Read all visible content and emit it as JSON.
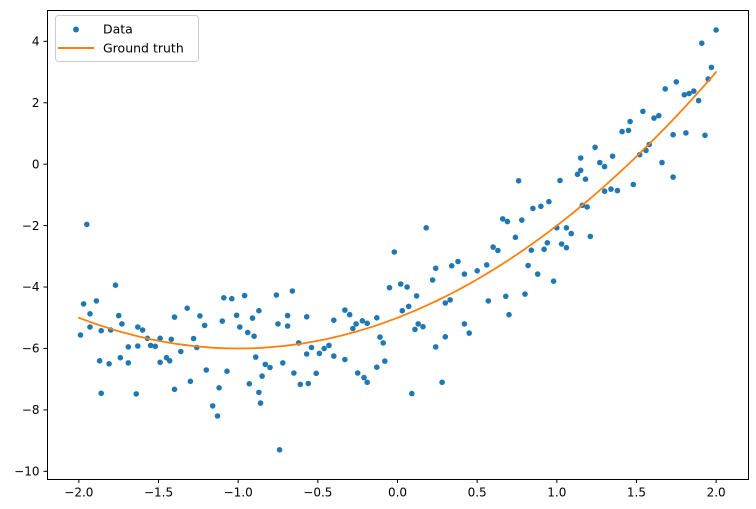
{
  "figure": {
    "background": "#ffffff",
    "legend": {
      "position": "upper left",
      "items": [
        {
          "label": "Data",
          "marker": "dot",
          "color": "#1f77b4"
        },
        {
          "label": "Ground truth",
          "marker": "line",
          "color": "#ff7f0e"
        }
      ]
    }
  },
  "chart_data": {
    "type": "scatter",
    "title": "",
    "xlabel": "",
    "ylabel": "",
    "grid": false,
    "legend_position": "upper left",
    "xlim": [
      -2.2,
      2.2
    ],
    "ylim": [
      -10.25,
      5.02
    ],
    "x_ticks": [
      -2.0,
      -1.5,
      -1.0,
      -0.5,
      0.0,
      0.5,
      1.0,
      1.5,
      2.0
    ],
    "x_tick_labels": [
      "−2.0",
      "−1.5",
      "−1.0",
      "−0.5",
      "0.0",
      "0.5",
      "1.0",
      "1.5",
      "2.0"
    ],
    "y_ticks": [
      4,
      2,
      0,
      -2,
      -4,
      -6,
      -8,
      -10
    ],
    "y_tick_labels": [
      "4",
      "2",
      "0",
      "−2",
      "−4",
      "−6",
      "−8",
      "−10"
    ],
    "series": [
      {
        "name": "Data",
        "type": "scatter",
        "color": "#1f77b4",
        "marker_radius": 2.8,
        "points": [
          [
            -1.99,
            -5.56
          ],
          [
            -1.97,
            -4.55
          ],
          [
            -1.95,
            -1.96
          ],
          [
            -1.93,
            -4.87
          ],
          [
            -1.93,
            -5.3
          ],
          [
            -1.89,
            -4.45
          ],
          [
            -1.87,
            -6.4
          ],
          [
            -1.86,
            -5.42
          ],
          [
            -1.86,
            -7.46
          ],
          [
            -1.81,
            -6.5
          ],
          [
            -1.8,
            -5.4
          ],
          [
            -1.77,
            -3.94
          ],
          [
            -1.75,
            -4.93
          ],
          [
            -1.74,
            -6.3
          ],
          [
            -1.73,
            -5.2
          ],
          [
            -1.69,
            -5.95
          ],
          [
            -1.69,
            -6.47
          ],
          [
            -1.64,
            -7.48
          ],
          [
            -1.63,
            -5.3
          ],
          [
            -1.63,
            -5.92
          ],
          [
            -1.6,
            -5.4
          ],
          [
            -1.57,
            -5.67
          ],
          [
            -1.55,
            -5.9
          ],
          [
            -1.52,
            -5.93
          ],
          [
            -1.49,
            -5.67
          ],
          [
            -1.49,
            -6.45
          ],
          [
            -1.45,
            -6.3
          ],
          [
            -1.43,
            -6.4
          ],
          [
            -1.42,
            -5.7
          ],
          [
            -1.4,
            -4.98
          ],
          [
            -1.4,
            -7.33
          ],
          [
            -1.36,
            -6.1
          ],
          [
            -1.32,
            -4.69
          ],
          [
            -1.3,
            -7.07
          ],
          [
            -1.28,
            -5.68
          ],
          [
            -1.26,
            -5.97
          ],
          [
            -1.24,
            -4.94
          ],
          [
            -1.21,
            -5.25
          ],
          [
            -1.2,
            -6.7
          ],
          [
            -1.16,
            -7.87
          ],
          [
            -1.13,
            -8.2
          ],
          [
            -1.12,
            -7.28
          ],
          [
            -1.1,
            -5.11
          ],
          [
            -1.09,
            -4.35
          ],
          [
            -1.07,
            -6.74
          ],
          [
            -1.04,
            -4.38
          ],
          [
            -1.01,
            -4.92
          ],
          [
            -0.99,
            -5.3
          ],
          [
            -0.96,
            -4.28
          ],
          [
            -0.94,
            -5.48
          ],
          [
            -0.93,
            -7.15
          ],
          [
            -0.91,
            -5.01
          ],
          [
            -0.9,
            -5.6
          ],
          [
            -0.89,
            -6.28
          ],
          [
            -0.87,
            -4.77
          ],
          [
            -0.87,
            -7.43
          ],
          [
            -0.86,
            -7.78
          ],
          [
            -0.85,
            -6.9
          ],
          [
            -0.83,
            -6.52
          ],
          [
            -0.8,
            -6.62
          ],
          [
            -0.76,
            -4.26
          ],
          [
            -0.75,
            -5.2
          ],
          [
            -0.74,
            -9.3
          ],
          [
            -0.72,
            -6.47
          ],
          [
            -0.69,
            -4.93
          ],
          [
            -0.69,
            -5.27
          ],
          [
            -0.66,
            -4.13
          ],
          [
            -0.65,
            -6.8
          ],
          [
            -0.62,
            -5.82
          ],
          [
            -0.61,
            -7.17
          ],
          [
            -0.57,
            -4.97
          ],
          [
            -0.57,
            -6.18
          ],
          [
            -0.56,
            -7.14
          ],
          [
            -0.54,
            -5.97
          ],
          [
            -0.51,
            -6.81
          ],
          [
            -0.49,
            -6.16
          ],
          [
            -0.46,
            -6.0
          ],
          [
            -0.43,
            -5.9
          ],
          [
            -0.4,
            -5.08
          ],
          [
            -0.4,
            -6.25
          ],
          [
            -0.33,
            -4.75
          ],
          [
            -0.33,
            -6.36
          ],
          [
            -0.3,
            -4.9
          ],
          [
            -0.28,
            -5.35
          ],
          [
            -0.26,
            -5.2
          ],
          [
            -0.25,
            -6.8
          ],
          [
            -0.22,
            -5.1
          ],
          [
            -0.21,
            -6.95
          ],
          [
            -0.19,
            -5.18
          ],
          [
            -0.19,
            -7.1
          ],
          [
            -0.13,
            -5.0
          ],
          [
            -0.13,
            -6.61
          ],
          [
            -0.11,
            -5.63
          ],
          [
            -0.09,
            -5.82
          ],
          [
            -0.08,
            -6.41
          ],
          [
            -0.05,
            -4.02
          ],
          [
            -0.02,
            -2.86
          ],
          [
            0.02,
            -3.9
          ],
          [
            0.03,
            -4.77
          ],
          [
            0.06,
            -4.0
          ],
          [
            0.07,
            -4.63
          ],
          [
            0.09,
            -7.47
          ],
          [
            0.11,
            -5.38
          ],
          [
            0.12,
            -4.29
          ],
          [
            0.13,
            -5.2
          ],
          [
            0.16,
            -5.29
          ],
          [
            0.18,
            -2.07
          ],
          [
            0.22,
            -3.77
          ],
          [
            0.24,
            -3.39
          ],
          [
            0.24,
            -5.95
          ],
          [
            0.28,
            -7.1
          ],
          [
            0.3,
            -4.52
          ],
          [
            0.3,
            -5.62
          ],
          [
            0.33,
            -4.42
          ],
          [
            0.34,
            -3.31
          ],
          [
            0.38,
            -3.17
          ],
          [
            0.42,
            -3.58
          ],
          [
            0.42,
            -5.2
          ],
          [
            0.45,
            -5.5
          ],
          [
            0.5,
            -3.47
          ],
          [
            0.56,
            -3.28
          ],
          [
            0.57,
            -4.45
          ],
          [
            0.6,
            -2.7
          ],
          [
            0.63,
            -2.81
          ],
          [
            0.66,
            -1.78
          ],
          [
            0.68,
            -4.3
          ],
          [
            0.69,
            -1.87
          ],
          [
            0.7,
            -4.9
          ],
          [
            0.74,
            -2.38
          ],
          [
            0.76,
            -0.54
          ],
          [
            0.78,
            -1.82
          ],
          [
            0.8,
            -4.23
          ],
          [
            0.82,
            -3.3
          ],
          [
            0.84,
            -2.8
          ],
          [
            0.85,
            -1.44
          ],
          [
            0.88,
            -3.58
          ],
          [
            0.9,
            -1.37
          ],
          [
            0.92,
            -2.77
          ],
          [
            0.94,
            -2.56
          ],
          [
            0.95,
            -1.22
          ],
          [
            0.98,
            -3.81
          ],
          [
            1.0,
            -2.07
          ],
          [
            1.02,
            -0.53
          ],
          [
            1.03,
            -2.6
          ],
          [
            1.06,
            -2.72
          ],
          [
            1.06,
            -2.07
          ],
          [
            1.09,
            -2.26
          ],
          [
            1.13,
            -0.33
          ],
          [
            1.15,
            -0.2
          ],
          [
            1.15,
            0.2
          ],
          [
            1.16,
            -1.34
          ],
          [
            1.18,
            -0.49
          ],
          [
            1.19,
            -1.39
          ],
          [
            1.21,
            -2.35
          ],
          [
            1.24,
            0.55
          ],
          [
            1.27,
            0.05
          ],
          [
            1.3,
            -0.08
          ],
          [
            1.3,
            -0.88
          ],
          [
            1.34,
            -0.81
          ],
          [
            1.35,
            0.26
          ],
          [
            1.38,
            -0.86
          ],
          [
            1.41,
            1.06
          ],
          [
            1.45,
            1.1
          ],
          [
            1.46,
            1.39
          ],
          [
            1.48,
            -0.66
          ],
          [
            1.52,
            0.31
          ],
          [
            1.54,
            1.72
          ],
          [
            1.56,
            0.45
          ],
          [
            1.58,
            0.64
          ],
          [
            1.61,
            1.5
          ],
          [
            1.64,
            1.58
          ],
          [
            1.66,
            0.05
          ],
          [
            1.68,
            2.45
          ],
          [
            1.73,
            -0.42
          ],
          [
            1.73,
            0.96
          ],
          [
            1.75,
            2.68
          ],
          [
            1.8,
            2.26
          ],
          [
            1.81,
            1.02
          ],
          [
            1.83,
            2.3
          ],
          [
            1.86,
            2.38
          ],
          [
            1.89,
            2.07
          ],
          [
            1.91,
            3.94
          ],
          [
            1.93,
            0.94
          ],
          [
            1.95,
            2.77
          ],
          [
            1.97,
            3.15
          ],
          [
            2.0,
            4.37
          ]
        ]
      },
      {
        "name": "Ground truth",
        "type": "line",
        "color": "#ff7f0e",
        "line_width": 1.8,
        "model": "y = (x+1)^2 - 6",
        "coefficients": {
          "a": 1,
          "b": 2,
          "c": -5
        },
        "x_range": [
          -2,
          2
        ],
        "samples": [
          [
            -2,
            -5
          ],
          [
            -1.75,
            -5.44
          ],
          [
            -1.5,
            -5.75
          ],
          [
            -1.25,
            -5.94
          ],
          [
            -1,
            -6
          ],
          [
            -0.75,
            -5.94
          ],
          [
            -0.5,
            -5.75
          ],
          [
            -0.25,
            -5.44
          ],
          [
            0,
            -5
          ],
          [
            0.25,
            -4.44
          ],
          [
            0.5,
            -3.75
          ],
          [
            0.75,
            -2.94
          ],
          [
            1,
            -2
          ],
          [
            1.25,
            -0.94
          ],
          [
            1.5,
            0.25
          ],
          [
            1.75,
            1.56
          ],
          [
            2,
            3
          ]
        ]
      }
    ]
  }
}
